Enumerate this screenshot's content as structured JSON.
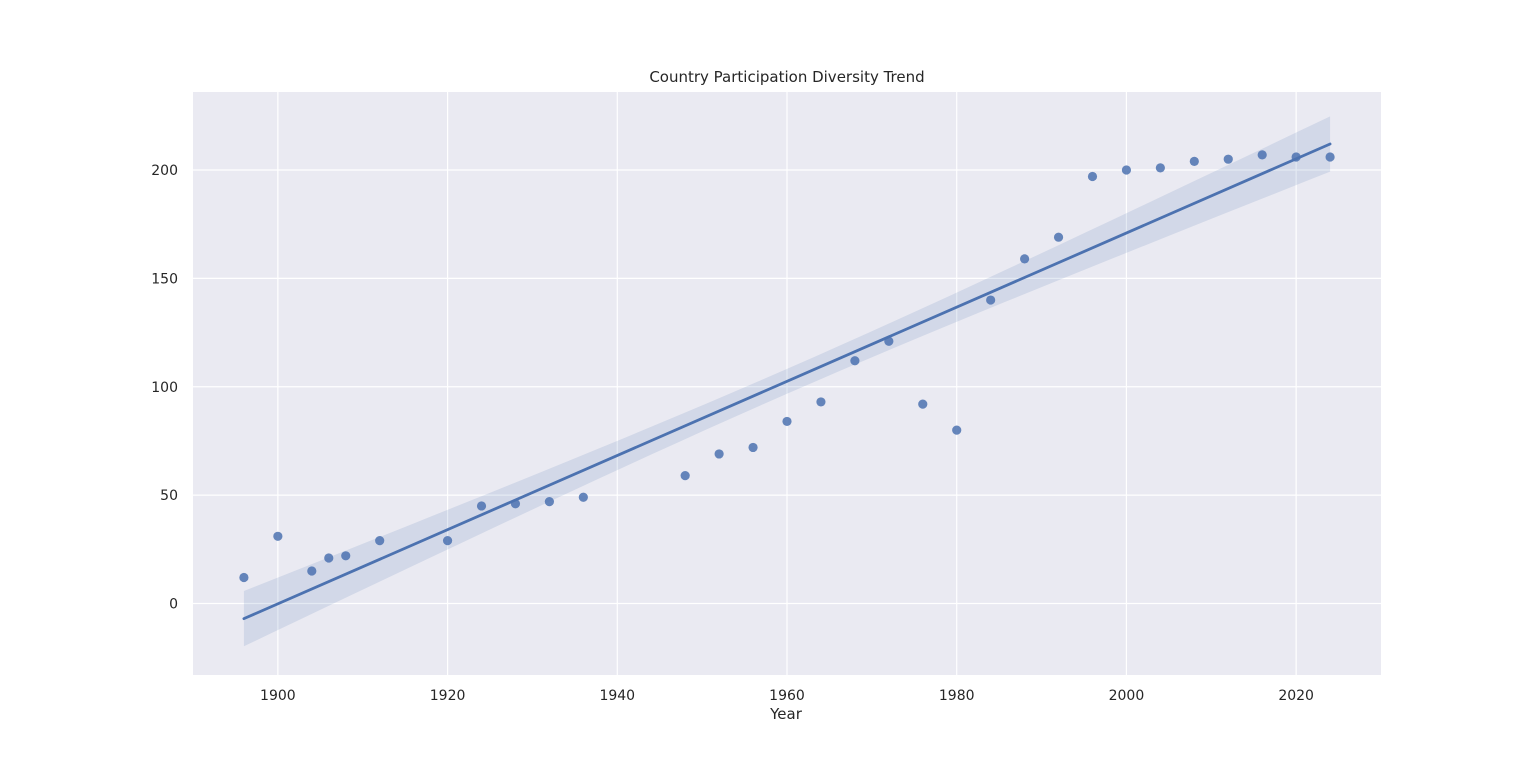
{
  "chart_data": {
    "type": "scatter",
    "title": "Country Participation Diversity Trend",
    "xlabel": "Year",
    "ylabel": "",
    "xlim": [
      1890,
      2030
    ],
    "ylim": [
      -33,
      236
    ],
    "x_ticks": [
      1900,
      1920,
      1940,
      1960,
      1980,
      2000,
      2020
    ],
    "y_ticks": [
      0,
      50,
      100,
      150,
      200
    ],
    "grid": true,
    "colors": {
      "background": "#eaeaf2",
      "grid": "#ffffff",
      "marker": "#4c72b0",
      "line": "#4c72b0",
      "band": "#4c72b0"
    },
    "series": [
      {
        "x": [
          1896,
          1900,
          1904,
          1906,
          1908,
          1912,
          1920,
          1924,
          1928,
          1932,
          1936,
          1948,
          1952,
          1956,
          1960,
          1964,
          1968,
          1972,
          1976,
          1980,
          1984,
          1988,
          1992,
          1996,
          2000,
          2004,
          2008,
          2012,
          2016,
          2020,
          2024
        ],
        "y": [
          12,
          31,
          15,
          21,
          22,
          29,
          29,
          45,
          46,
          47,
          49,
          59,
          69,
          72,
          84,
          93,
          112,
          121,
          92,
          80,
          140,
          159,
          169,
          197,
          200,
          201,
          204,
          205,
          207,
          206,
          206
        ]
      }
    ],
    "regression": {
      "x": [
        1896,
        2024
      ],
      "y": [
        -7,
        212
      ],
      "ci_lower": [
        -21,
        196
      ],
      "ci_upper": [
        2,
        224
      ],
      "ci_mid_x": 1932,
      "ci_mid_lower": [
        49,
        58
      ]
    }
  }
}
